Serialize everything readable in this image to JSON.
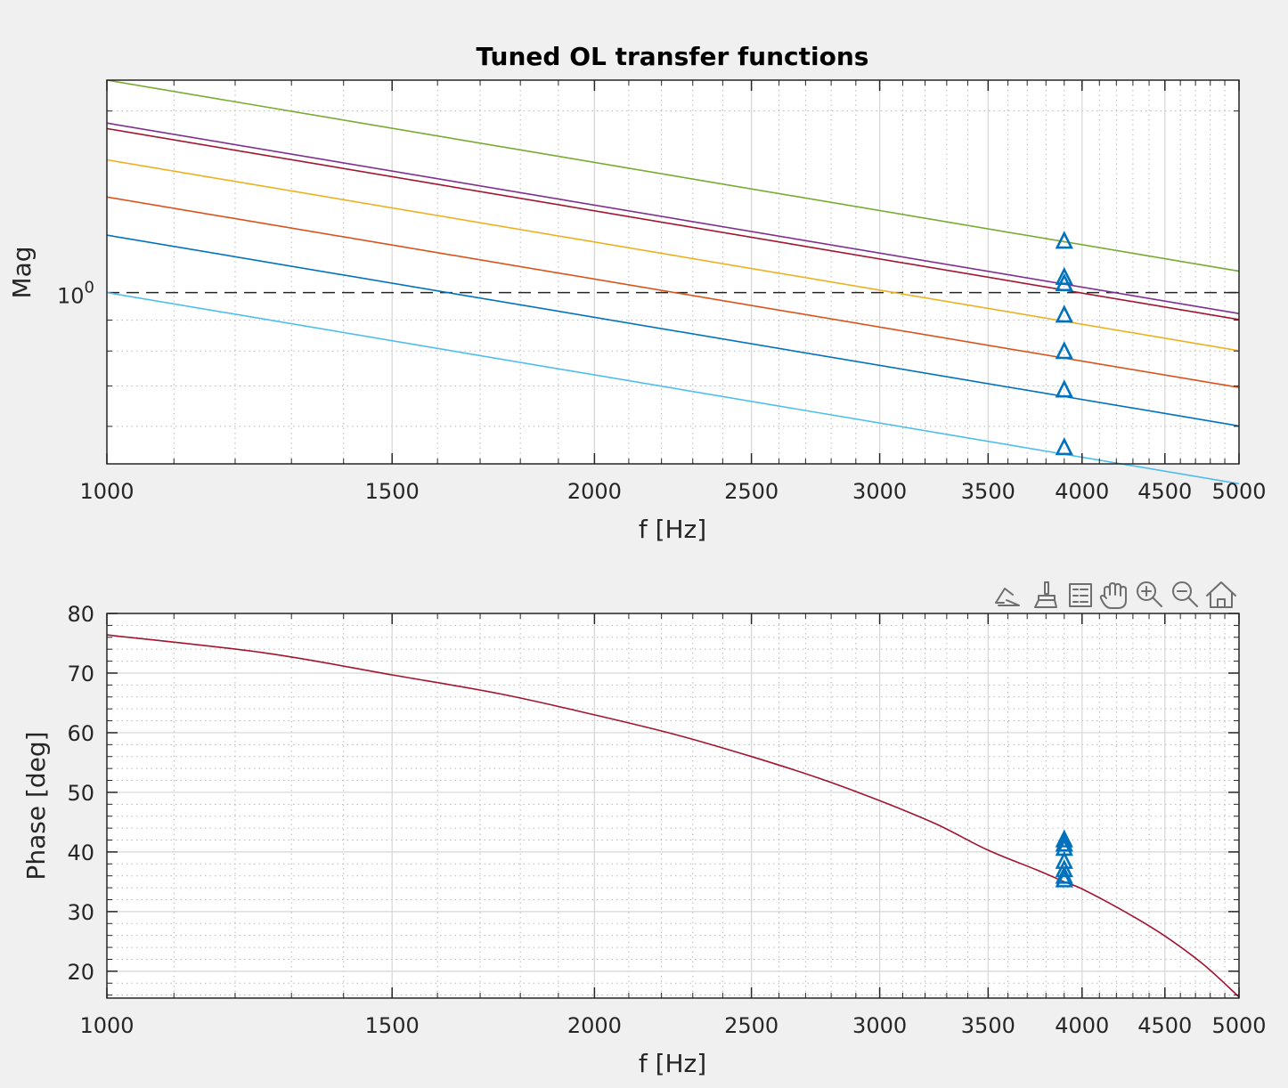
{
  "chart_data": [
    {
      "type": "line",
      "title": "Tuned OL transfer functions",
      "xlabel": "f [Hz]",
      "ylabel": "Mag",
      "xscale": "log",
      "yscale": "log",
      "xlim": [
        1000,
        5000
      ],
      "ylim": [
        0.52,
        2.25
      ],
      "xticks": [
        1000,
        1500,
        2000,
        2500,
        3000,
        3500,
        4000,
        4500,
        5000
      ],
      "xticklabels": [
        "1000",
        "1500",
        "2000",
        "2500",
        "3000",
        "3500",
        "4000",
        "4500",
        "5000"
      ],
      "yticks": [
        {
          "value": 1,
          "base": "10",
          "exp": "0"
        }
      ],
      "grid": true,
      "reference_line": {
        "y": 1,
        "style": "dashed",
        "color": "#262626"
      },
      "series": [
        {
          "color": "#77ac30",
          "x": [
            1000,
            5000
          ],
          "y": [
            2.25,
            1.085
          ]
        },
        {
          "color": "#7e2f8e",
          "x": [
            1000,
            5000
          ],
          "y": [
            1.91,
            0.923
          ]
        },
        {
          "color": "#a2142f",
          "x": [
            1000,
            5000
          ],
          "y": [
            1.87,
            0.902
          ]
        },
        {
          "color": "#edb120",
          "x": [
            1000,
            5000
          ],
          "y": [
            1.66,
            0.801
          ]
        },
        {
          "color": "#d95319",
          "x": [
            1000,
            5000
          ],
          "y": [
            1.44,
            0.696
          ]
        },
        {
          "color": "#0072bd",
          "x": [
            1000,
            5000
          ],
          "y": [
            1.245,
            0.601
          ]
        },
        {
          "color": "#4dbeee",
          "x": [
            1000,
            5000
          ],
          "y": [
            1.0,
            0.482
          ]
        }
      ],
      "markers": {
        "shape": "triangle",
        "color": "#0072bd",
        "x": 3900,
        "y": [
          1.216,
          1.059,
          1.034,
          0.917,
          0.798,
          0.689,
          0.553
        ]
      }
    },
    {
      "type": "line",
      "xlabel": "f [Hz]",
      "ylabel": "Phase [deg]",
      "xscale": "log",
      "xlim": [
        1000,
        5000
      ],
      "ylim": [
        15.5,
        80
      ],
      "xticks": [
        1000,
        1500,
        2000,
        2500,
        3000,
        3500,
        4000,
        4500,
        5000
      ],
      "xticklabels": [
        "1000",
        "1500",
        "2000",
        "2500",
        "3000",
        "3500",
        "4000",
        "4500",
        "5000"
      ],
      "yticks": [
        20,
        30,
        40,
        50,
        60,
        70,
        80
      ],
      "yticklabels": [
        "20",
        "30",
        "40",
        "50",
        "60",
        "70",
        "80"
      ],
      "grid": true,
      "series": [
        {
          "color": "#a2142f",
          "x": [
            1000,
            1250,
            1500,
            1750,
            2000,
            2250,
            2500,
            2750,
            3000,
            3250,
            3500,
            3750,
            3900,
            4000,
            4250,
            4500,
            4750,
            5000
          ],
          "y": [
            76.4,
            73.4,
            69.7,
            66.5,
            63.0,
            59.6,
            56.0,
            52.4,
            48.6,
            44.7,
            40.3,
            37.0,
            35.0,
            33.8,
            30.0,
            25.9,
            21.2,
            15.7
          ]
        }
      ],
      "markers": {
        "shape": "triangle",
        "color": "#0072bd",
        "x": 3900,
        "y": [
          42.0,
          41.3,
          40.6,
          38.4,
          37.0,
          35.9,
          35.3
        ]
      }
    }
  ],
  "toolbar": {
    "icons": [
      "data-tips-icon",
      "brush-icon",
      "legend-icon",
      "pan-hand-icon",
      "zoom-in-icon",
      "zoom-out-icon",
      "home-icon"
    ]
  }
}
